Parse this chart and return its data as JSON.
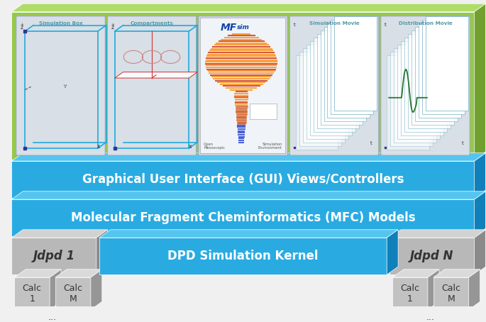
{
  "bg_color": "#f0f0f0",
  "green_face": "#96c84b",
  "green_top": "#b0dc6a",
  "green_side": "#72a030",
  "blue_face": "#29abe2",
  "blue_top": "#55c5f0",
  "blue_side": "#1080bb",
  "gray_face": "#b8b8b8",
  "gray_top": "#d2d2d2",
  "gray_side": "#8a8a8a",
  "gray2_face": "#c2c2c2",
  "gray2_top": "#dadada",
  "gray2_side": "#969696",
  "text_white": "#ffffff",
  "text_dark": "#333333",
  "panel_bg": "#dde4ea",
  "panel_border": "#9aabba",
  "panel_label_color": "#5599aa",
  "wire_color": "#22aadd",
  "red_line_color": "#cc3333",
  "gui_label": "Graphical User Interface (GUI) Views/Controllers",
  "mfc_label": "Molecular Fragment Cheminformatics (MFC) Models",
  "dpd_label": "DPD Simulation Kernel",
  "jdpd1_label": "Jdpd 1",
  "jdpdN_label": "Jdpd N",
  "calc1_label": "Calc\n1",
  "calcM_label": "Calc\nM",
  "panel_labels": [
    "Simulation Box",
    "Compartments",
    "",
    "Simulation Movie",
    "Distribution Movie"
  ],
  "dots_label": "..."
}
